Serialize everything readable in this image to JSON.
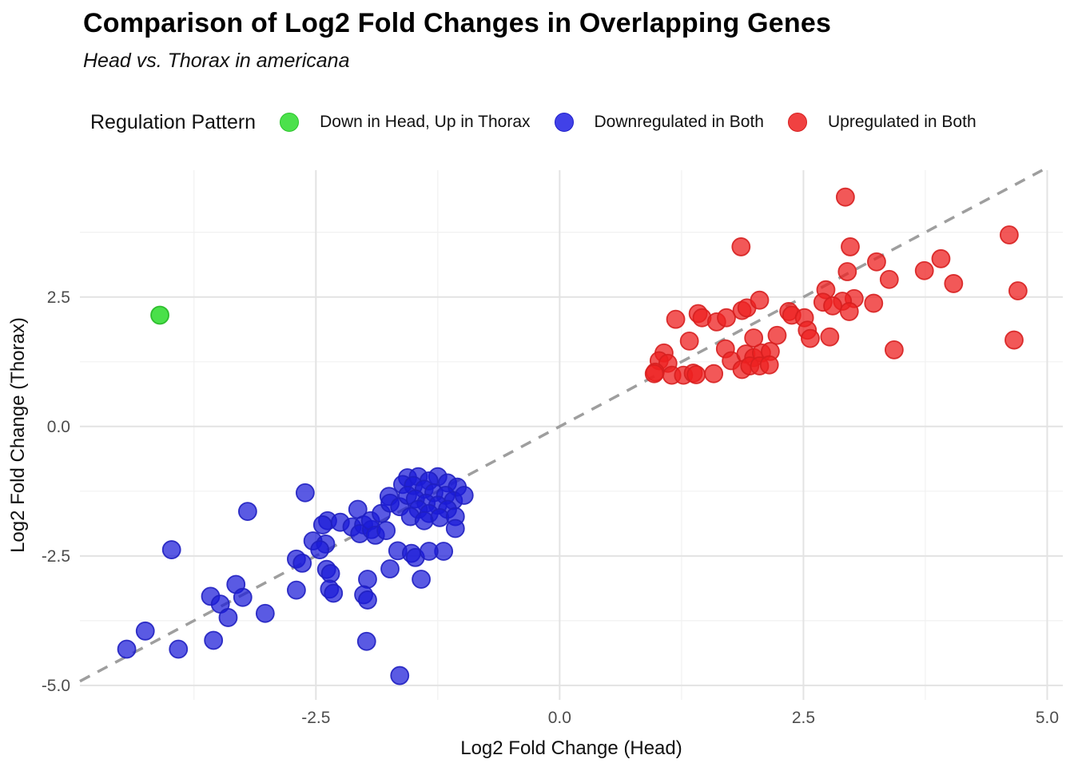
{
  "header": {
    "title": "Comparison of Log2 Fold Changes in Overlapping Genes",
    "subtitle": "Head vs. Thorax in americana"
  },
  "legend": {
    "title": "Regulation Pattern",
    "items": [
      {
        "label": "Down in Head, Up in Thorax",
        "color": "#4ce14c",
        "stroke": "#2cc52c",
        "series": "down_head_up_thorax"
      },
      {
        "label": "Downregulated in Both",
        "color": "#4141e8",
        "stroke": "#1f1fc9",
        "series": "down_both"
      },
      {
        "label": "Upregulated in Both",
        "color": "#f04141",
        "stroke": "#d61f1f",
        "series": "up_both"
      }
    ]
  },
  "chart_data": {
    "type": "scatter",
    "title": "Comparison of Log2 Fold Changes in Overlapping Genes",
    "subtitle": "Head vs. Thorax in americana",
    "xlabel": "Log2 Fold Change (Head)",
    "ylabel": "Log2 Fold Change (Thorax)",
    "xlim": [
      -4.92,
      5.16
    ],
    "ylim": [
      -5.28,
      4.95
    ],
    "x_ticks": [
      -2.5,
      0.0,
      2.5,
      5.0
    ],
    "y_ticks": [
      -5.0,
      -2.5,
      0.0,
      2.5
    ],
    "x_tick_labels": [
      "-2.5",
      "0.0",
      "2.5",
      "5.0"
    ],
    "y_tick_labels": [
      "-5.0",
      "-2.5",
      "0.0",
      "2.5"
    ],
    "x_minor_ticks": [
      -3.75,
      -1.25,
      1.25,
      3.75
    ],
    "y_minor_ticks": [
      -3.75,
      -1.25,
      1.25,
      3.75
    ],
    "grid": true,
    "legend_position": "top",
    "identity_line": {
      "show": true,
      "equation": "y = x",
      "style": "dashed",
      "color": "#9e9e9e"
    },
    "series": [
      {
        "name": "Down in Head, Up in Thorax",
        "fill": "#2ada2a",
        "stroke": "#24b824",
        "fill_opacity": 0.85,
        "points": [
          [
            -4.1,
            2.15
          ]
        ]
      },
      {
        "name": "Downregulated in Both",
        "fill": "#1a1ad8",
        "stroke": "#1f1fc0",
        "fill_opacity": 0.72,
        "points": [
          [
            -3.2,
            -1.64
          ],
          [
            -3.98,
            -2.38
          ],
          [
            -3.32,
            -3.05
          ],
          [
            -3.58,
            -3.28
          ],
          [
            -3.48,
            -3.43
          ],
          [
            -3.25,
            -3.3
          ],
          [
            -3.4,
            -3.69
          ],
          [
            -3.02,
            -3.61
          ],
          [
            -4.25,
            -3.95
          ],
          [
            -4.44,
            -4.3
          ],
          [
            -3.91,
            -4.3
          ],
          [
            -3.55,
            -4.13
          ],
          [
            -2.61,
            -1.28
          ],
          [
            -2.38,
            -1.82
          ],
          [
            -2.43,
            -1.9
          ],
          [
            -2.53,
            -2.21
          ],
          [
            -2.4,
            -2.27
          ],
          [
            -2.25,
            -1.85
          ],
          [
            -2.13,
            -1.94
          ],
          [
            -2.07,
            -1.6
          ],
          [
            -2.01,
            -1.9
          ],
          [
            -2.05,
            -2.07
          ],
          [
            -1.93,
            -1.99
          ],
          [
            -1.94,
            -1.82
          ],
          [
            -1.83,
            -1.68
          ],
          [
            -1.89,
            -2.1
          ],
          [
            -1.78,
            -2.01
          ],
          [
            -1.75,
            -1.35
          ],
          [
            -1.74,
            -1.48
          ],
          [
            -1.64,
            -1.55
          ],
          [
            -2.7,
            -2.56
          ],
          [
            -2.64,
            -2.64
          ],
          [
            -2.46,
            -2.38
          ],
          [
            -2.39,
            -2.76
          ],
          [
            -2.35,
            -2.84
          ],
          [
            -2.7,
            -3.16
          ],
          [
            -2.36,
            -3.14
          ],
          [
            -2.32,
            -3.22
          ],
          [
            -1.56,
            -0.99
          ],
          [
            -1.45,
            -0.97
          ],
          [
            -1.25,
            -0.97
          ],
          [
            -1.34,
            -1.05
          ],
          [
            -1.61,
            -1.12
          ],
          [
            -1.5,
            -1.14
          ],
          [
            -1.15,
            -1.09
          ],
          [
            -1.05,
            -1.17
          ],
          [
            -1.39,
            -1.21
          ],
          [
            -1.29,
            -1.28
          ],
          [
            -1.17,
            -1.33
          ],
          [
            -1.56,
            -1.33
          ],
          [
            -1.48,
            -1.4
          ],
          [
            -1.09,
            -1.43
          ],
          [
            -0.98,
            -1.33
          ],
          [
            -1.37,
            -1.48
          ],
          [
            -1.25,
            -1.52
          ],
          [
            -1.45,
            -1.6
          ],
          [
            -1.15,
            -1.6
          ],
          [
            -1.34,
            -1.68
          ],
          [
            -1.53,
            -1.74
          ],
          [
            -1.23,
            -1.76
          ],
          [
            -1.07,
            -1.74
          ],
          [
            -1.39,
            -1.82
          ],
          [
            -1.07,
            -1.97
          ],
          [
            -1.66,
            -2.4
          ],
          [
            -1.52,
            -2.45
          ],
          [
            -1.48,
            -2.53
          ],
          [
            -1.19,
            -2.41
          ],
          [
            -1.34,
            -2.41
          ],
          [
            -1.74,
            -2.75
          ],
          [
            -1.97,
            -2.95
          ],
          [
            -1.42,
            -2.95
          ],
          [
            -2.01,
            -3.25
          ],
          [
            -1.97,
            -3.35
          ],
          [
            -1.98,
            -4.15
          ],
          [
            -1.64,
            -4.81
          ]
        ]
      },
      {
        "name": "Upregulated in Both",
        "fill": "#ee2020",
        "stroke": "#d61f1f",
        "fill_opacity": 0.75,
        "points": [
          [
            2.93,
            4.43
          ],
          [
            1.86,
            3.47
          ],
          [
            2.98,
            3.47
          ],
          [
            3.25,
            3.18
          ],
          [
            2.95,
            2.99
          ],
          [
            3.38,
            2.84
          ],
          [
            3.74,
            3.01
          ],
          [
            3.91,
            3.24
          ],
          [
            4.04,
            2.76
          ],
          [
            4.61,
            3.7
          ],
          [
            4.7,
            2.62
          ],
          [
            3.02,
            2.47
          ],
          [
            2.9,
            2.42
          ],
          [
            2.97,
            2.22
          ],
          [
            3.22,
            2.38
          ],
          [
            3.43,
            1.48
          ],
          [
            4.66,
            1.67
          ],
          [
            2.73,
            2.64
          ],
          [
            2.7,
            2.4
          ],
          [
            1.19,
            2.07
          ],
          [
            1.42,
            2.18
          ],
          [
            1.46,
            2.1
          ],
          [
            1.61,
            2.02
          ],
          [
            1.71,
            2.1
          ],
          [
            1.87,
            2.24
          ],
          [
            1.92,
            2.29
          ],
          [
            2.05,
            2.44
          ],
          [
            2.35,
            2.22
          ],
          [
            2.38,
            2.15
          ],
          [
            2.51,
            2.1
          ],
          [
            2.54,
            1.86
          ],
          [
            2.57,
            1.7
          ],
          [
            2.8,
            2.33
          ],
          [
            2.77,
            1.73
          ],
          [
            1.33,
            1.65
          ],
          [
            1.7,
            1.5
          ],
          [
            1.76,
            1.27
          ],
          [
            1.91,
            1.4
          ],
          [
            1.99,
            1.33
          ],
          [
            2.07,
            1.42
          ],
          [
            2.16,
            1.45
          ],
          [
            2.23,
            1.76
          ],
          [
            1.99,
            1.71
          ],
          [
            1.07,
            1.42
          ],
          [
            1.02,
            1.27
          ],
          [
            1.11,
            1.22
          ],
          [
            0.98,
            1.05
          ],
          [
            0.97,
            1.02
          ],
          [
            1.15,
            0.99
          ],
          [
            1.27,
            0.99
          ],
          [
            1.37,
            1.03
          ],
          [
            1.4,
            1.0
          ],
          [
            1.58,
            1.02
          ],
          [
            1.87,
            1.1
          ],
          [
            1.95,
            1.17
          ],
          [
            2.05,
            1.17
          ],
          [
            2.15,
            1.19
          ]
        ]
      }
    ]
  },
  "colors": {
    "background": "#ffffff",
    "grid_major": "#e3e3e3",
    "grid_minor": "#f1f1f1",
    "tick_label": "#4d4d4d",
    "axis_title": "#111111",
    "dashed_line": "#9e9e9e"
  }
}
